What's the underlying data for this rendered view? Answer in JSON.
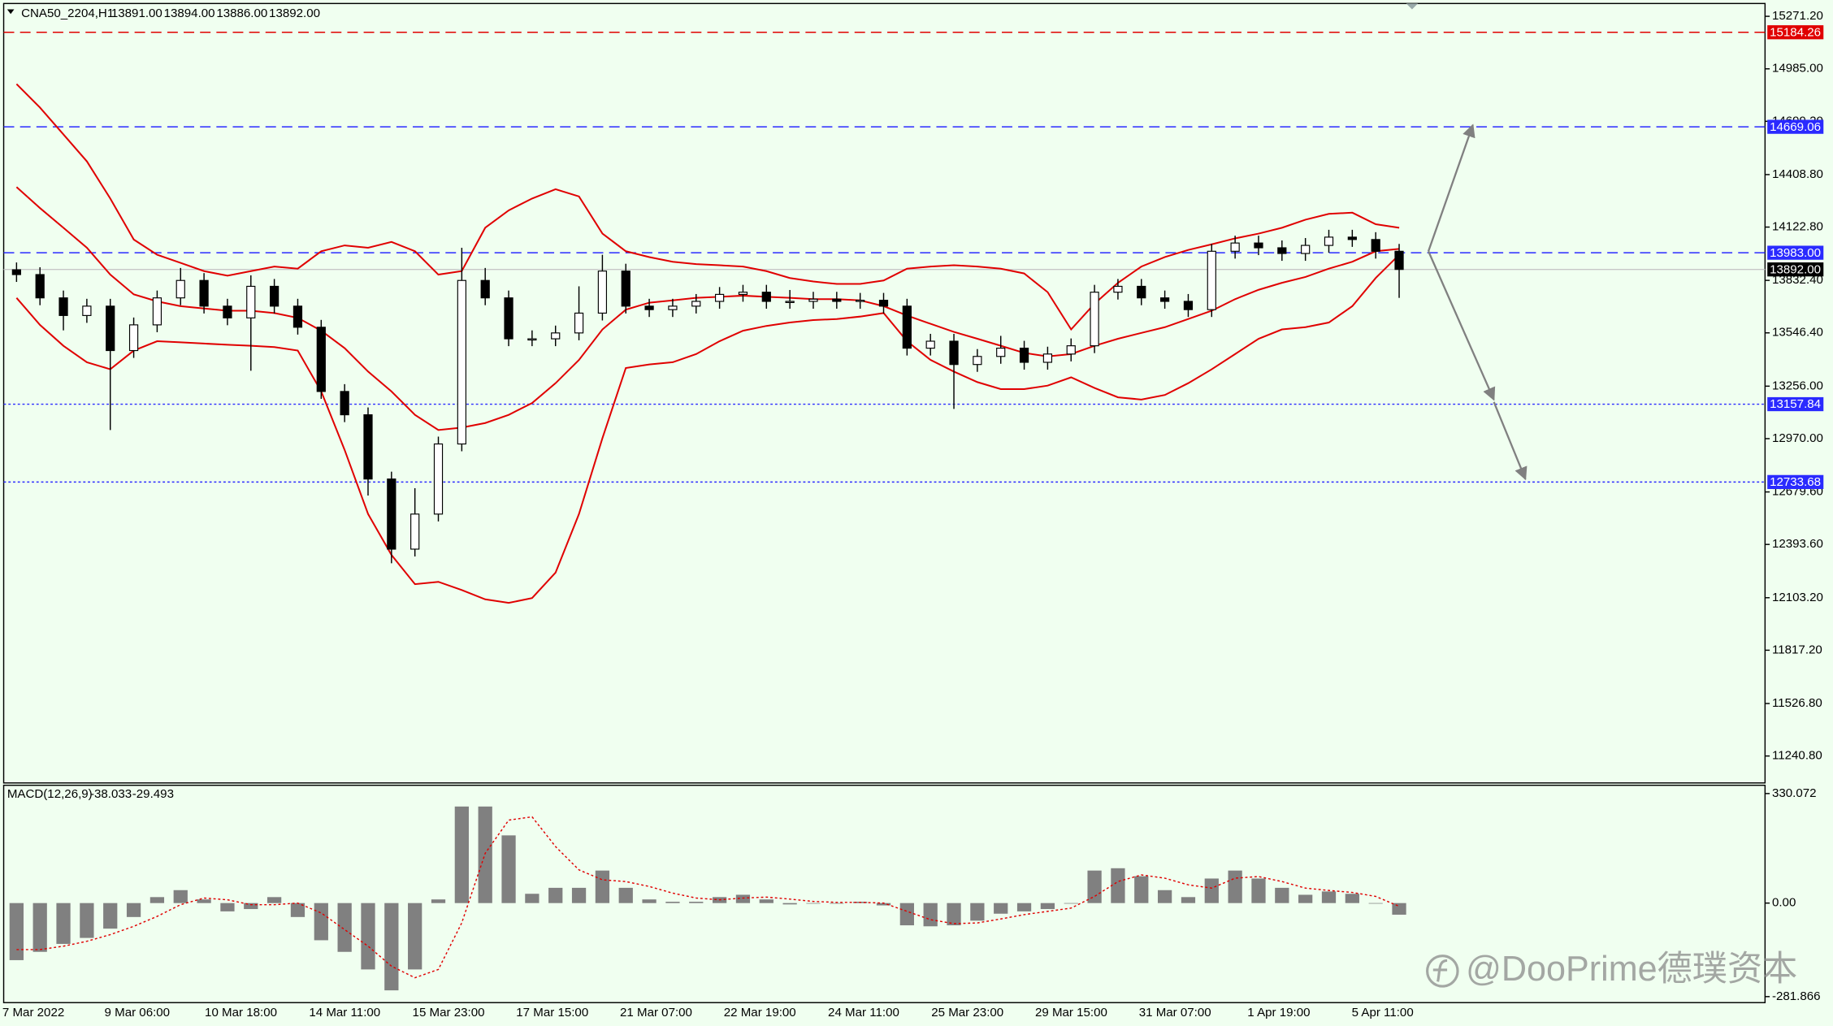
{
  "chart_data": [
    {
      "type": "candlestick",
      "title": "CNA50_2204,H1",
      "ohlc_text": [
        "13891.00",
        "13894.00",
        "13886.00",
        "13892.00"
      ],
      "ylim": [
        11094,
        15341
      ],
      "yticks": [
        {
          "value": 15271.2,
          "label": "15271.20"
        },
        {
          "value": 14985,
          "label": "14985.00"
        },
        {
          "value": 14699.2,
          "label": "14699.20"
        },
        {
          "value": 14408.8,
          "label": "14408.80"
        },
        {
          "value": 14122.8,
          "label": "14122.80"
        },
        {
          "value": 13832.4,
          "label": "13832.40"
        },
        {
          "value": 13546.4,
          "label": "13546.40"
        },
        {
          "value": 13256,
          "label": "13256.00"
        },
        {
          "value": 12970,
          "label": "12970.00"
        },
        {
          "value": 12679.6,
          "label": "12679.60"
        },
        {
          "value": 12393.6,
          "label": "12393.60"
        },
        {
          "value": 12103.2,
          "label": "12103.20"
        },
        {
          "value": 11817.2,
          "label": "11817.20"
        },
        {
          "value": 11526.8,
          "label": "11526.80"
        },
        {
          "value": 11240.8,
          "label": "11240.80"
        }
      ],
      "xticks": [
        "7 Mar 2022",
        "9 Mar 06:00",
        "10 Mar 18:00",
        "14 Mar 11:00",
        "15 Mar 23:00",
        "17 Mar 15:00",
        "21 Mar 07:00",
        "22 Mar 19:00",
        "24 Mar 11:00",
        "25 Mar 23:00",
        "29 Mar 15:00",
        "31 Mar 07:00",
        "1 Apr 19:00",
        "5 Apr 11:00"
      ],
      "open": [
        13890,
        13864,
        13737,
        13641,
        13692,
        13450,
        13590,
        13737,
        13832,
        13692,
        13628,
        13800,
        13692,
        13577,
        13227,
        13100,
        12750,
        12368,
        12559,
        12941,
        13832,
        13737,
        13514,
        13514,
        13546,
        13654,
        13883,
        13692,
        13673,
        13692,
        13718,
        13756,
        13768,
        13718,
        13718,
        13730,
        13718,
        13724,
        13692,
        13463,
        13501,
        13374,
        13418,
        13463,
        13386,
        13431,
        13476,
        13768,
        13800,
        13737,
        13718,
        13673,
        13991,
        14036,
        14010,
        13979,
        14023,
        14068,
        14055,
        13991
      ],
      "high": [
        13930,
        13904,
        13777,
        13732,
        13732,
        13630,
        13777,
        13900,
        13872,
        13732,
        13860,
        13840,
        13732,
        13617,
        13267,
        13140,
        12790,
        12700,
        12981,
        14010,
        13900,
        13777,
        13560,
        13586,
        13800,
        13972,
        13923,
        13732,
        13732,
        13758,
        13796,
        13808,
        13808,
        13780,
        13770,
        13770,
        13764,
        13764,
        13732,
        13541,
        13541,
        13458,
        13530,
        13503,
        13471,
        13516,
        13808,
        13840,
        13840,
        13777,
        13758,
        14031,
        14076,
        14076,
        14050,
        14063,
        14108,
        14108,
        14095,
        14031
      ],
      "low": [
        13824,
        13697,
        13560,
        13601,
        13017,
        13410,
        13550,
        13697,
        13652,
        13588,
        13340,
        13652,
        13537,
        13187,
        13060,
        12660,
        12291,
        12328,
        12519,
        12901,
        13697,
        13474,
        13474,
        13474,
        13506,
        13614,
        13652,
        13633,
        13633,
        13652,
        13678,
        13716,
        13678,
        13678,
        13678,
        13678,
        13678,
        13652,
        13423,
        13423,
        13132,
        13334,
        13378,
        13346,
        13346,
        13391,
        13436,
        13728,
        13697,
        13678,
        13633,
        13633,
        13951,
        13970,
        13939,
        13939,
        13983,
        14015,
        13951,
        13737
      ],
      "close": [
        13864,
        13737,
        13641,
        13692,
        13450,
        13590,
        13737,
        13832,
        13692,
        13628,
        13800,
        13692,
        13577,
        13227,
        13100,
        12750,
        12368,
        12559,
        12941,
        13832,
        13737,
        13514,
        13514,
        13546,
        13654,
        13883,
        13692,
        13673,
        13692,
        13718,
        13756,
        13768,
        13718,
        13718,
        13730,
        13718,
        13724,
        13692,
        13463,
        13501,
        13374,
        13418,
        13463,
        13386,
        13431,
        13476,
        13768,
        13800,
        13737,
        13718,
        13673,
        13991,
        14036,
        14010,
        13979,
        14023,
        14068,
        14055,
        13991,
        13892
      ],
      "bollinger": {
        "color": "#e00000",
        "upper": [
          14902,
          14774,
          14628,
          14481,
          14278,
          14055,
          13972,
          13928,
          13883,
          13858,
          13883,
          13908,
          13896,
          13991,
          14023,
          14010,
          14042,
          13991,
          13864,
          13883,
          14119,
          14214,
          14278,
          14329,
          14290,
          14087,
          13991,
          13959,
          13934,
          13921,
          13915,
          13908,
          13883,
          13845,
          13826,
          13813,
          13813,
          13832,
          13896,
          13908,
          13915,
          13908,
          13896,
          13870,
          13768,
          13565,
          13705,
          13819,
          13908,
          13959,
          13998,
          14029,
          14061,
          14087,
          14119,
          14163,
          14195,
          14201,
          14138,
          14119
        ],
        "middle": [
          14341,
          14227,
          14119,
          14010,
          13864,
          13756,
          13718,
          13692,
          13679,
          13667,
          13667,
          13654,
          13628,
          13558,
          13463,
          13335,
          13227,
          13100,
          13017,
          13030,
          13055,
          13100,
          13164,
          13272,
          13399,
          13565,
          13673,
          13711,
          13724,
          13737,
          13743,
          13749,
          13743,
          13737,
          13730,
          13730,
          13724,
          13692,
          13641,
          13596,
          13552,
          13514,
          13476,
          13437,
          13418,
          13431,
          13476,
          13514,
          13546,
          13577,
          13622,
          13667,
          13730,
          13781,
          13819,
          13851,
          13896,
          13934,
          13991,
          14004
        ],
        "lower": [
          13737,
          13590,
          13476,
          13386,
          13348,
          13450,
          13501,
          13495,
          13488,
          13482,
          13476,
          13469,
          13450,
          13227,
          12909,
          12559,
          12336,
          12177,
          12190,
          12145,
          12094,
          12075,
          12101,
          12240,
          12559,
          12973,
          13355,
          13374,
          13386,
          13431,
          13501,
          13558,
          13584,
          13603,
          13616,
          13622,
          13635,
          13654,
          13501,
          13399,
          13335,
          13278,
          13240,
          13240,
          13259,
          13304,
          13246,
          13195,
          13183,
          13208,
          13272,
          13348,
          13431,
          13514,
          13565,
          13577,
          13603,
          13692,
          13845,
          13972
        ]
      },
      "levels": [
        {
          "value": 15184.26,
          "color": "#e00000",
          "style": "dashed"
        },
        {
          "value": 14669.06,
          "color": "#2a2aff",
          "style": "dashed"
        },
        {
          "value": 13983,
          "label": "13983.00",
          "color": "#2a2aff",
          "style": "dashed"
        },
        {
          "value": 13157.84,
          "color": "#2a2aff",
          "style": "dotted"
        },
        {
          "value": 12733.68,
          "color": "#2a2aff",
          "style": "dotted"
        }
      ],
      "current_price": {
        "value": 13892,
        "label": "13892.00",
        "color": "#000000"
      }
    },
    {
      "type": "macd",
      "title": "MACD(12,26,9)",
      "value_text": [
        "-38.033",
        "-29.493"
      ],
      "ylim": [
        -300,
        355
      ],
      "yticks": [
        330.072,
        {
          "value": 0,
          "label": "0.00"
        },
        -281.866
      ],
      "histogram_color": "#808080",
      "signal_color": "#e00000",
      "histogram": [
        -172,
        -147,
        -123,
        -105,
        -77,
        -42,
        18,
        39,
        11,
        -25,
        -18,
        18,
        -42,
        -112,
        -147,
        -200,
        -263,
        -200,
        11,
        291,
        291,
        204,
        28,
        46,
        46,
        98,
        46,
        11,
        4,
        4,
        18,
        25,
        11,
        -4,
        0,
        0,
        4,
        -7,
        -67,
        -70,
        -67,
        -53,
        -32,
        -25,
        -18,
        0,
        98,
        105,
        81,
        39,
        18,
        74,
        98,
        74,
        46,
        25,
        35,
        28,
        0,
        -35
      ],
      "signal": [
        -140,
        -140,
        -130,
        -115,
        -95,
        -70,
        -40,
        -5,
        15,
        10,
        -5,
        -5,
        0,
        -30,
        -80,
        -130,
        -190,
        -225,
        -200,
        -60,
        150,
        250,
        260,
        170,
        100,
        70,
        65,
        50,
        30,
        15,
        10,
        15,
        18,
        12,
        5,
        2,
        2,
        0,
        -25,
        -50,
        -62,
        -60,
        -48,
        -35,
        -25,
        -15,
        20,
        65,
        85,
        75,
        55,
        45,
        75,
        80,
        65,
        45,
        38,
        32,
        20,
        -10
      ]
    }
  ],
  "watermark": "@DooPrime德璞资本"
}
